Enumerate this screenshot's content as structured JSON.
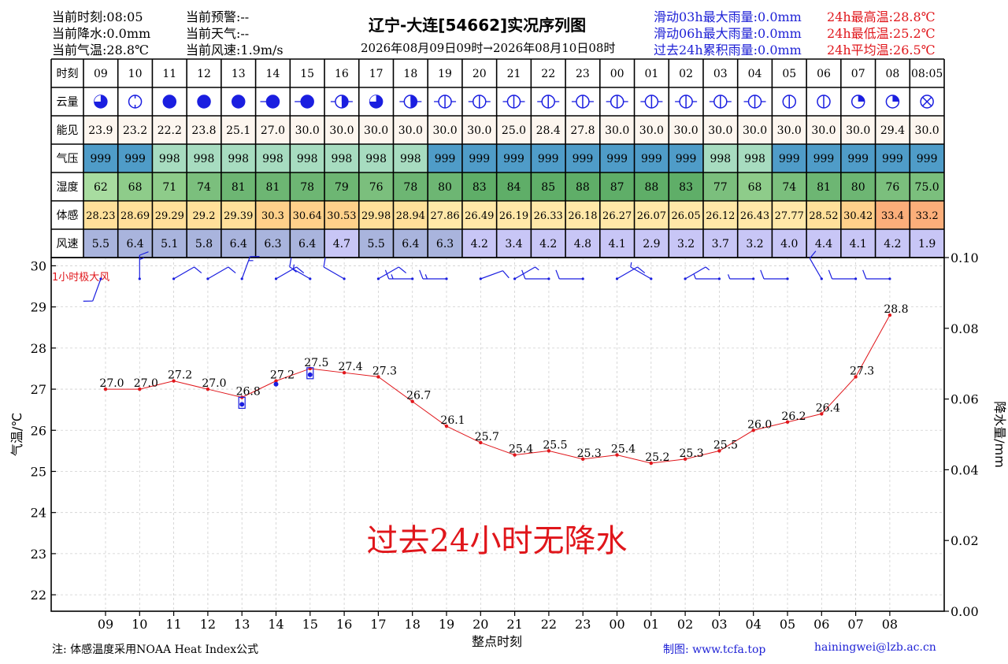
{
  "header": {
    "title": "辽宁-大连[54662]实况序列图",
    "subtitle": "2026年08月09日09时→2026年08月10日08时",
    "left_col1": [
      "当前时刻:08:05",
      "当前降水:0.0mm",
      "当前气温:28.8℃"
    ],
    "left_col2": [
      "当前预警:--",
      "当前天气:--",
      "当前风速:1.9m/s"
    ],
    "rain_stats": [
      "滑动03h最大雨量:0.0mm",
      "滑动06h最大雨量:0.0mm",
      "过去24h累积雨量:0.0mm"
    ],
    "temp_stats": [
      "24h最高温:28.8℃",
      "24h最低温:25.2℃",
      "24h平均温:26.5℃"
    ]
  },
  "table": {
    "row_labels": [
      "时刻",
      "云量",
      "能见",
      "气压",
      "湿度",
      "体感",
      "风速"
    ],
    "times": [
      "09",
      "10",
      "11",
      "12",
      "13",
      "14",
      "15",
      "16",
      "17",
      "18",
      "19",
      "20",
      "21",
      "22",
      "23",
      "00",
      "01",
      "02",
      "03",
      "04",
      "05",
      "06",
      "07",
      "08",
      "08:05"
    ],
    "cloud": [
      5,
      4,
      8,
      8,
      8,
      8,
      8,
      6,
      5,
      6,
      4,
      4,
      4,
      4,
      4,
      4,
      4,
      4,
      4,
      4,
      4,
      4,
      6,
      6,
      9
    ],
    "visibility": [
      "23.9",
      "23.2",
      "22.2",
      "23.8",
      "25.1",
      "27.0",
      "30.0",
      "30.0",
      "30.0",
      "30.0",
      "30.0",
      "30.0",
      "25.0",
      "28.4",
      "27.8",
      "30.0",
      "30.0",
      "30.0",
      "30.0",
      "30.0",
      "30.0",
      "30.0",
      "30.0",
      "29.4",
      "30.0"
    ],
    "pressure": [
      "999",
      "999",
      "998",
      "998",
      "998",
      "998",
      "998",
      "998",
      "998",
      "998",
      "999",
      "999",
      "999",
      "999",
      "999",
      "999",
      "999",
      "999",
      "998",
      "998",
      "999",
      "999",
      "999",
      "999",
      "999"
    ],
    "humidity": [
      "62",
      "68",
      "71",
      "74",
      "81",
      "81",
      "78",
      "79",
      "76",
      "78",
      "80",
      "83",
      "84",
      "85",
      "88",
      "87",
      "88",
      "83",
      "77",
      "68",
      "74",
      "81",
      "80",
      "76",
      "75.0"
    ],
    "feels_like": [
      "28.23",
      "28.69",
      "29.29",
      "29.2",
      "29.39",
      "30.3",
      "30.64",
      "30.53",
      "29.98",
      "28.94",
      "27.86",
      "26.49",
      "26.19",
      "26.33",
      "26.18",
      "26.27",
      "26.07",
      "26.05",
      "26.12",
      "26.43",
      "27.77",
      "28.52",
      "30.42",
      "33.4",
      "33.2"
    ],
    "wind_speed": [
      "5.5",
      "6.4",
      "5.1",
      "5.8",
      "6.4",
      "6.3",
      "6.4",
      "4.7",
      "5.5",
      "6.4",
      "6.3",
      "4.2",
      "3.4",
      "4.2",
      "4.8",
      "4.1",
      "2.9",
      "3.2",
      "3.7",
      "3.2",
      "4.0",
      "4.4",
      "4.1",
      "4.2",
      "1.9"
    ],
    "colors": {
      "visibility": "#fdf6ef",
      "pressure_999": "#4f9cc8",
      "pressure_998": "#a7dcc0",
      "humidity": {
        "62": "#a8dca0",
        "68": "#8ecc8a",
        "71": "#8ecc8a",
        "74": "#7bbf7d",
        "75.0": "#7bbf7d",
        "76": "#7bbf7d",
        "77": "#7bbf7d",
        "78": "#6db673",
        "79": "#6db673",
        "80": "#6db673",
        "81": "#6db673",
        "83": "#5fae68",
        "84": "#5fae68",
        "85": "#5fae68",
        "87": "#5fae68",
        "88": "#5fae68"
      },
      "feels_like": {
        "26": "#ffe8a8",
        "27": "#ffe8a8",
        "28": "#ffe09a",
        "29": "#ffe09a",
        "30": "#ffd08a",
        "33": "#fcae7a"
      },
      "wind_strong": "#a9b4dd",
      "wind_weak": "#c8c6f6"
    }
  },
  "chart_data": {
    "type": "line",
    "title": "辽宁-大连[54662]实况序列图",
    "xlabel": "整点时刻",
    "ylabel": "气温/℃",
    "y2label": "降水量/mm",
    "categories": [
      "09",
      "10",
      "11",
      "12",
      "13",
      "14",
      "15",
      "16",
      "17",
      "18",
      "19",
      "20",
      "21",
      "22",
      "23",
      "00",
      "01",
      "02",
      "03",
      "04",
      "05",
      "06",
      "07",
      "08"
    ],
    "series": [
      {
        "values": [
          27.0,
          27.0,
          27.2,
          27.0,
          26.8,
          27.2,
          27.5,
          27.4,
          27.3,
          26.7,
          26.1,
          25.7,
          25.4,
          25.5,
          25.3,
          25.4,
          25.2,
          25.3,
          25.5,
          26.0,
          26.2,
          26.4,
          27.3,
          28.8
        ],
        "color": "#e0161b"
      }
    ],
    "dew_markers": [
      {
        "x": "13",
        "value": 26.63
      },
      {
        "x": "14",
        "value": 27.12
      },
      {
        "x": "15",
        "value": 27.35
      }
    ],
    "wind_label": "1小时极大风",
    "wind_directions_deg": [
      200,
      0,
      60,
      60,
      20,
      60,
      300,
      300,
      60,
      270,
      270,
      70,
      60,
      270,
      270,
      60,
      300,
      60,
      270,
      270,
      270,
      330,
      270,
      270
    ],
    "wind_speeds": [
      5.5,
      6.4,
      5.1,
      5.8,
      6.4,
      6.3,
      6.4,
      4.7,
      5.5,
      6.4,
      6.3,
      4.2,
      3.4,
      4.2,
      4.8,
      4.1,
      2.9,
      3.2,
      3.7,
      3.2,
      4.0,
      4.4,
      4.1,
      4.2
    ],
    "no_rain_text": "过去24小时无降水",
    "ylim": [
      21.6,
      30.2
    ],
    "y2lim": [
      0.0,
      0.1
    ],
    "yticks": [
      22,
      23,
      24,
      25,
      26,
      27,
      28,
      29,
      30
    ],
    "y2ticks": [
      "0.00",
      "0.02",
      "0.04",
      "0.06",
      "0.08",
      "0.10"
    ],
    "grid": true
  },
  "footer": {
    "note": "注: 体感温度采用NOAA Heat Index公式",
    "maker": "制图: www.tcfa.top",
    "email": "hainingwei@lzb.ac.cn"
  }
}
